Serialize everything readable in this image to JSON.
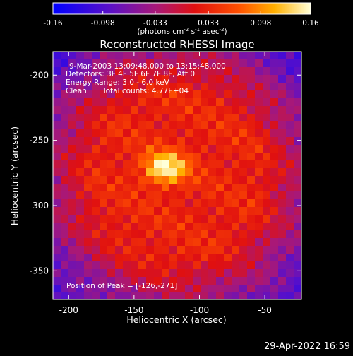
{
  "chart_data": {
    "type": "heatmap",
    "title": "Reconstructed RHESSI Image",
    "xlabel": "Heliocentric X (arcsec)",
    "ylabel": "Heliocentric Y (arcsec)",
    "xlim": [
      -212,
      -22
    ],
    "ylim": [
      -372,
      -182
    ],
    "x_ticks": [
      "-200",
      "-150",
      "-100",
      "-50"
    ],
    "x_tick_values": [
      -200,
      -150,
      -100,
      -50
    ],
    "y_ticks": [
      "-200",
      "-250",
      "-300",
      "-350"
    ],
    "y_tick_values": [
      -200,
      -250,
      -300,
      -350
    ],
    "colorbar": {
      "ticks": [
        "-0.16",
        "-0.098",
        "-0.033",
        "0.033",
        "0.098",
        "0.16"
      ],
      "tick_values": [
        -0.16,
        -0.098,
        -0.033,
        0.033,
        0.098,
        0.16
      ],
      "range": [
        -0.16,
        0.16
      ],
      "units_text": "(photons cm",
      "units_exp1": "-2",
      "units_mid": " s",
      "units_exp2": "-1",
      "units_mid2": " asec",
      "units_exp3": "-2",
      "units_close": ")"
    },
    "peak": {
      "x": -126,
      "y": -271,
      "value": 0.16
    },
    "annotations": {
      "time": "9-Mar-2003 13:09:48.000 to 13:15:48.000",
      "detectors": "Detectors: 3F 4F 5F 6F 7F 8F, Att 0",
      "energy": "Energy Range: 3.0 - 6.0 keV",
      "method": "Clean",
      "counts": "Total counts: 4.77E+04",
      "peak_label": "Position of Peak = [-126,-271]"
    }
  },
  "footer": {
    "timestamp": "29-Apr-2022 16:59"
  },
  "colors": {
    "background": "#000000",
    "text": "#ffffff"
  }
}
